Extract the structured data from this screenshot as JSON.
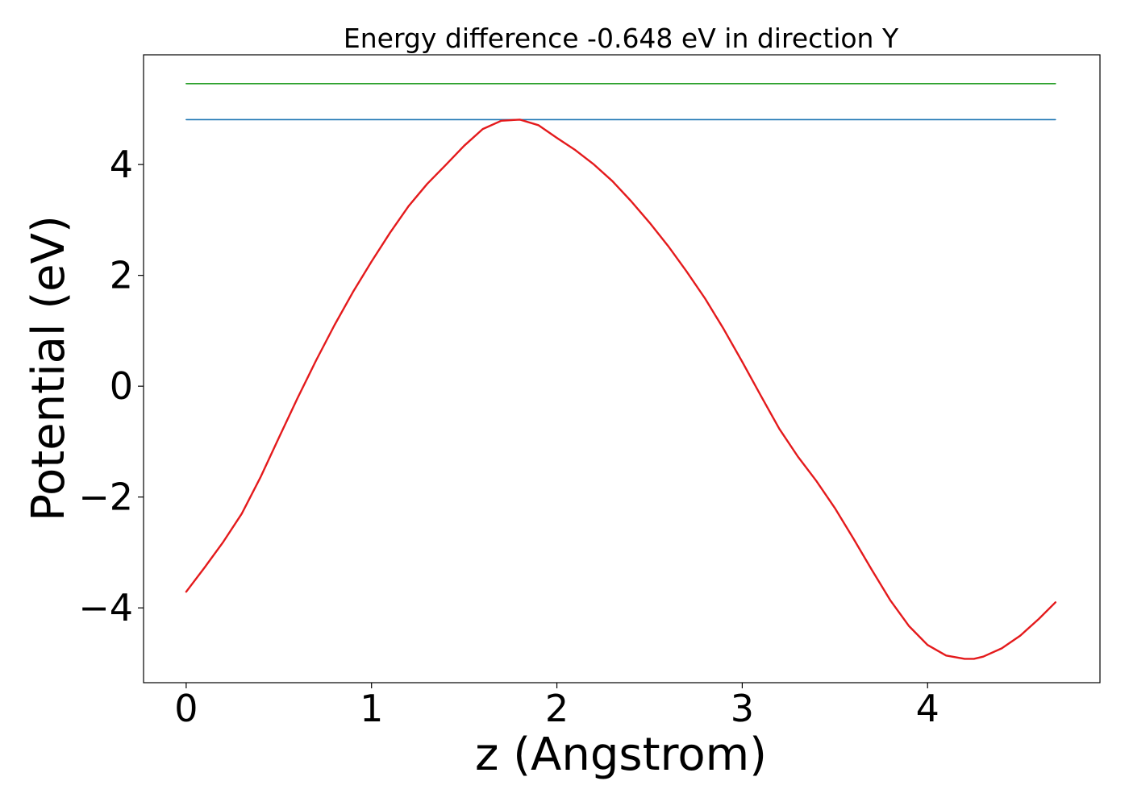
{
  "chart_data": {
    "type": "line",
    "title": "Energy difference -0.648 eV in direction Y",
    "xlabel": "z (Angstrom)",
    "ylabel": "Potential (eV)",
    "xlim": [
      -0.23,
      4.93
    ],
    "ylim": [
      -5.35,
      5.98
    ],
    "xticks": [
      0,
      1,
      2,
      3,
      4
    ],
    "xtick_labels": [
      "0",
      "1",
      "2",
      "3",
      "4"
    ],
    "yticks": [
      -4,
      -2,
      0,
      2,
      4
    ],
    "ytick_labels": [
      "−4",
      "−2",
      "0",
      "2",
      "4"
    ],
    "grid": false,
    "series": [
      {
        "color": "#2ca02c",
        "x": [
          0,
          4.69
        ],
        "y": [
          5.46,
          5.46
        ]
      },
      {
        "color": "#1f77b4",
        "x": [
          0,
          4.69
        ],
        "y": [
          4.81,
          4.81
        ]
      },
      {
        "color": "#e41a1c",
        "x": [
          0,
          0.1,
          0.2,
          0.3,
          0.4,
          0.5,
          0.6,
          0.7,
          0.8,
          0.9,
          1.0,
          1.1,
          1.2,
          1.3,
          1.4,
          1.5,
          1.6,
          1.7,
          1.8,
          1.9,
          2.0,
          2.1,
          2.2,
          2.3,
          2.4,
          2.5,
          2.6,
          2.7,
          2.8,
          2.9,
          3.0,
          3.1,
          3.2,
          3.3,
          3.4,
          3.5,
          3.6,
          3.7,
          3.8,
          3.9,
          4.0,
          4.1,
          4.2,
          4.25,
          4.3,
          4.4,
          4.5,
          4.6,
          4.69
        ],
        "y": [
          -3.71,
          -3.27,
          -2.81,
          -2.3,
          -1.65,
          -0.93,
          -0.22,
          0.46,
          1.1,
          1.7,
          2.25,
          2.77,
          3.25,
          3.65,
          3.99,
          4.34,
          4.64,
          4.79,
          4.81,
          4.71,
          4.48,
          4.26,
          4.0,
          3.7,
          3.34,
          2.95,
          2.53,
          2.07,
          1.58,
          1.03,
          0.44,
          -0.17,
          -0.77,
          -1.27,
          -1.71,
          -2.2,
          -2.75,
          -3.32,
          -3.87,
          -4.33,
          -4.67,
          -4.86,
          -4.92,
          -4.92,
          -4.88,
          -4.73,
          -4.5,
          -4.2,
          -3.9
        ]
      }
    ]
  }
}
